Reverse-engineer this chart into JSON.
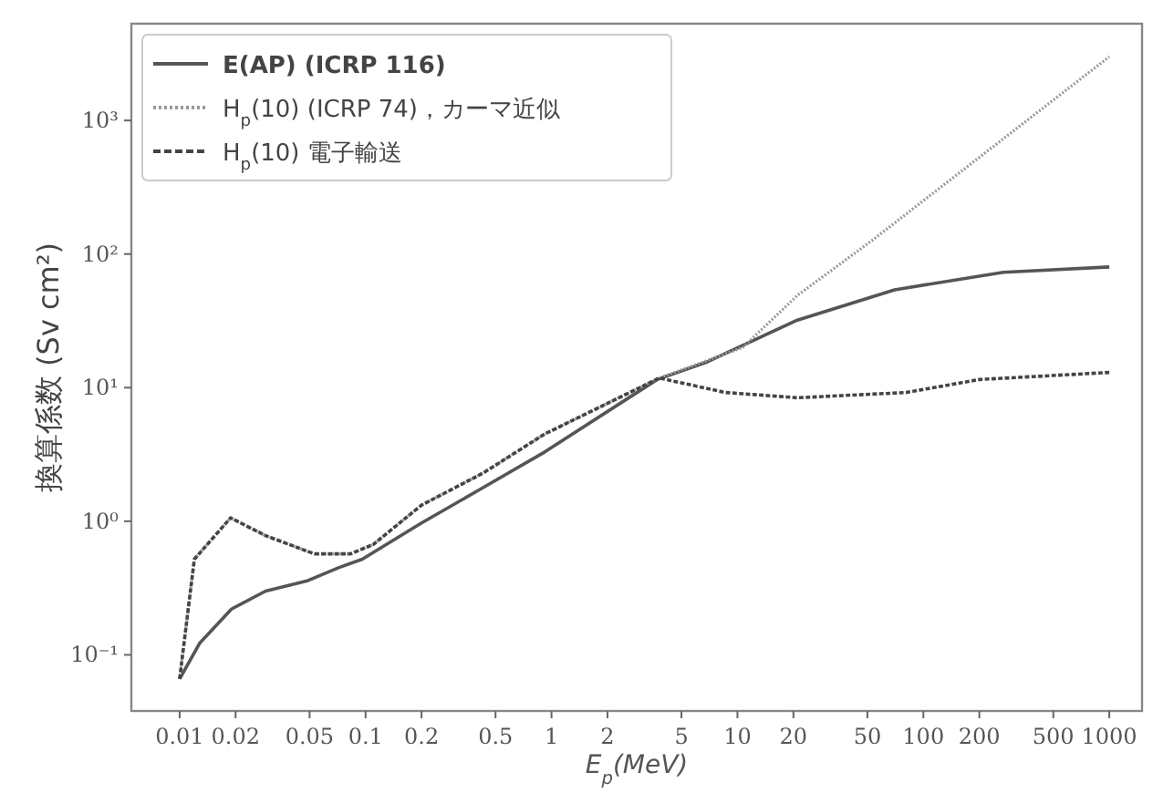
{
  "chart_data": {
    "type": "line",
    "xlabel": "E$_{p}$(MeV)",
    "ylabel": "換算係数 (Sv cm²)",
    "log": "xy",
    "grid": false,
    "legend": "top left",
    "xlim": [
      0.0055,
      1500
    ],
    "ylim": [
      0.038,
      5300
    ],
    "xticks": [
      0.01,
      0.02,
      0.05,
      0.1,
      0.2,
      0.5,
      1,
      2,
      5,
      10,
      20,
      50,
      100,
      200,
      500,
      1000
    ],
    "yticks": [
      {
        "value": 0.1,
        "label": "10⁻¹"
      },
      {
        "value": 1,
        "label": "10⁰"
      },
      {
        "value": 10,
        "label": "10¹"
      },
      {
        "value": 100,
        "label": "10²"
      },
      {
        "value": 1000,
        "label": "10³"
      }
    ],
    "series": [
      {
        "name": "E(AP) (ICRP 116)",
        "color": "#555555",
        "line_style": "solid",
        "x": [
          0.01,
          0.0128,
          0.019,
          0.029,
          0.049,
          0.072,
          0.096,
          0.2,
          0.4,
          0.92,
          3.7,
          6.9,
          21,
          70,
          269,
          1000
        ],
        "values": [
          0.066,
          0.122,
          0.22,
          0.3,
          0.36,
          0.45,
          0.52,
          0.97,
          1.69,
          3.3,
          11.5,
          15.6,
          32,
          54,
          73,
          80
        ]
      },
      {
        "name": "H$_{p}$(10) (ICRP 74)，カーマ近似",
        "color": "#999999",
        "line_style": "dotted",
        "x": [
          0.01,
          0.012,
          0.0188,
          0.029,
          0.053,
          0.083,
          0.11,
          0.2,
          0.43,
          0.92,
          3.8,
          10.7,
          21,
          52,
          1000
        ],
        "values": [
          0.066,
          0.52,
          1.06,
          0.78,
          0.57,
          0.57,
          0.67,
          1.32,
          2.3,
          4.5,
          11.8,
          20,
          49,
          124,
          3000
        ]
      },
      {
        "name": "H$_{p}$(10) 電子輸送",
        "color": "#444444",
        "line_style": "dashed",
        "x": [
          0.01,
          0.012,
          0.0188,
          0.029,
          0.053,
          0.083,
          0.11,
          0.2,
          0.43,
          0.92,
          3.8,
          8.6,
          21,
          81,
          200,
          1000
        ],
        "values": [
          0.066,
          0.52,
          1.06,
          0.78,
          0.57,
          0.57,
          0.67,
          1.32,
          2.3,
          4.5,
          11.8,
          9.2,
          8.4,
          9.2,
          11.5,
          13
        ]
      }
    ]
  }
}
